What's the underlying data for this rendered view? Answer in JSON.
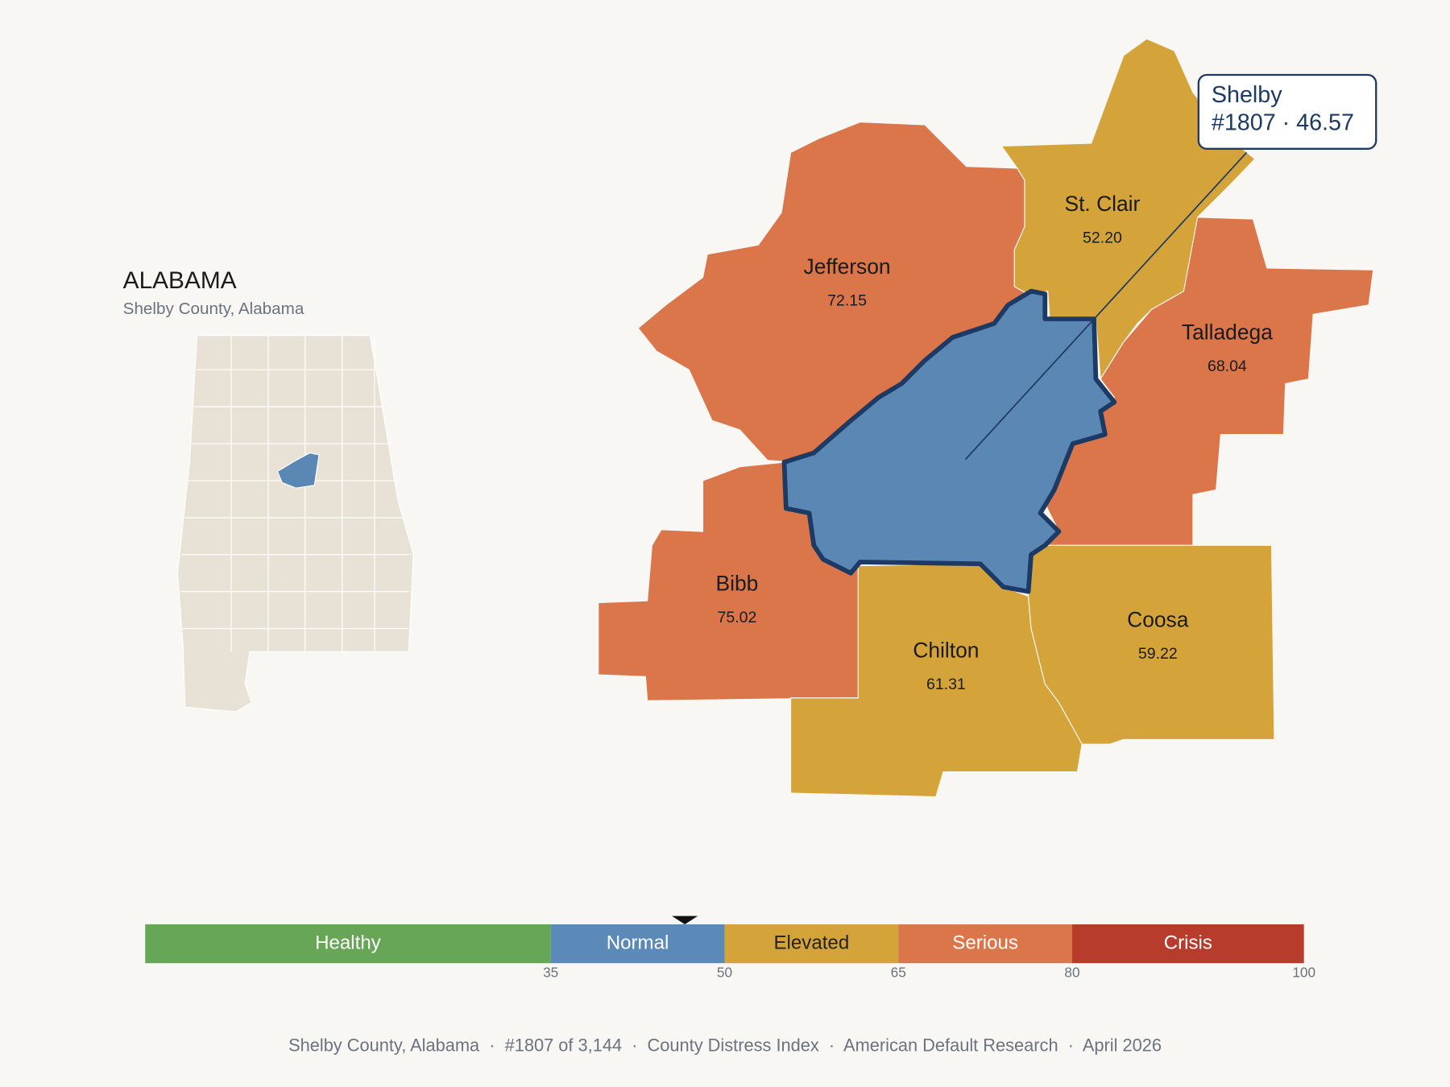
{
  "header": {
    "title": "ALABAMA",
    "subtitle": "Shelby County, Alabama"
  },
  "selected": {
    "name": "Shelby",
    "detail": "#1807 · 46.57",
    "value": 46.57,
    "color": "#5b87b5",
    "outline": "#1c3a63"
  },
  "counties": [
    {
      "name": "Jefferson",
      "score": "72.15",
      "color": "#db764a"
    },
    {
      "name": "St. Clair",
      "score": "52.20",
      "color": "#d4a43a"
    },
    {
      "name": "Talladega",
      "score": "68.04",
      "color": "#db764a"
    },
    {
      "name": "Bibb",
      "score": "75.02",
      "color": "#db764a"
    },
    {
      "name": "Chilton",
      "score": "61.31",
      "color": "#d4a43a"
    },
    {
      "name": "Coosa",
      "score": "59.22",
      "color": "#d4a43a"
    }
  ],
  "scale": {
    "lim": [
      0,
      100
    ],
    "ticks": [
      35,
      50,
      65,
      80,
      100
    ],
    "bands": [
      {
        "label": "Healthy",
        "end": 35,
        "color": "#67a657",
        "text_color": "#ffffff"
      },
      {
        "label": "Normal",
        "end": 50,
        "color": "#5b8ab8",
        "text_color": "#ffffff"
      },
      {
        "label": "Elevated",
        "end": 65,
        "color": "#d4a43a",
        "text_color": "#222222"
      },
      {
        "label": "Serious",
        "end": 80,
        "color": "#db764a",
        "text_color": "#ffffff"
      },
      {
        "label": "Crisis",
        "end": 100,
        "color": "#b83c2c",
        "text_color": "#ffffff"
      }
    ]
  },
  "footer": "Shelby County, Alabama  ·  #1807 of 3,144  ·  County Distress Index  ·  American Default Research  ·  April 2026"
}
